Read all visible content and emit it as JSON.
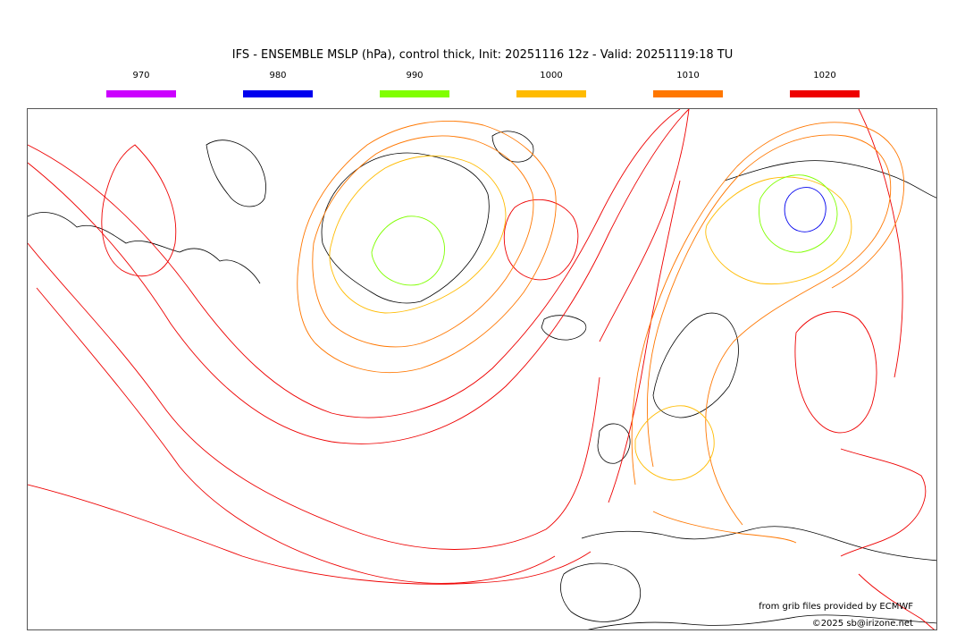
{
  "title": "IFS - ENSEMBLE MSLP (hPa), control thick, Init: 20251116 12z - Valid: 20251119:18 TU",
  "legend": [
    {
      "label": "970",
      "color": "#cc00ff"
    },
    {
      "label": "980",
      "color": "#0000ee"
    },
    {
      "label": "990",
      "color": "#80ff00"
    },
    {
      "label": "1000",
      "color": "#ffbb00"
    },
    {
      "label": "1010",
      "color": "#ff7700"
    },
    {
      "label": "1020",
      "color": "#ee0000"
    }
  ],
  "credits": {
    "source": "from grib files provided by ECMWF",
    "copyright": "©2025 sb@irizone.net"
  }
}
